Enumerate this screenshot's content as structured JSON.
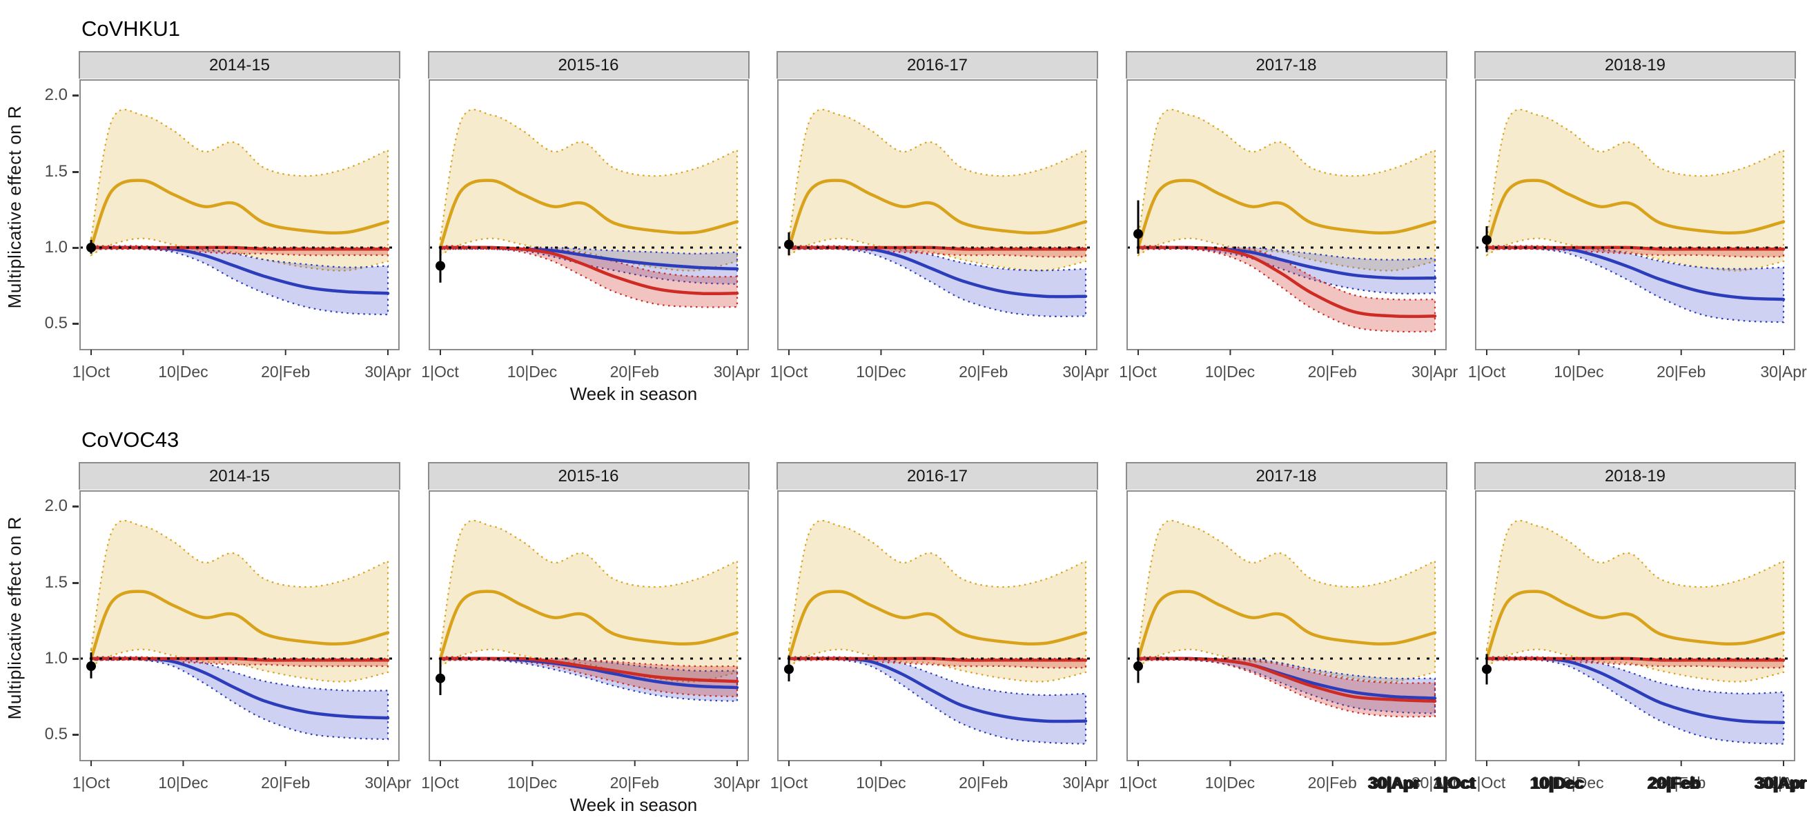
{
  "figure": {
    "y_ticks": [
      0.5,
      1.0,
      1.5,
      2.0
    ],
    "x_tick_labels": [
      "1|Oct",
      "10|Dec",
      "20|Feb",
      "30|Apr"
    ],
    "x_tick_weeks": [
      1,
      10,
      20,
      30
    ],
    "colors": {
      "yellow": "#D9A21B",
      "yellow_fill": "rgba(217,162,27,0.22)",
      "red": "#CD2B23",
      "red_fill": "rgba(205,43,35,0.28)",
      "blue": "#2B3DBB",
      "blue_fill": "rgba(60,72,200,0.25)",
      "reference": "#000000",
      "point": "#000000",
      "strip_bg": "#D9D9D9",
      "panel_border": "#8C8C8C"
    }
  },
  "artifact": {
    "labels": [
      "30|Apr",
      "1|Oct",
      "10|Dec",
      "20|Feb",
      "30|Apr"
    ],
    "offsets": [
      0,
      95,
      235,
      405,
      560
    ]
  },
  "chart_data": [
    {
      "type": "line",
      "title": "CoVHKU1",
      "xlabel": "Week in season",
      "ylabel": "Multiplicative effect on R",
      "ylim": [
        0.33,
        2.1
      ],
      "y_ticks": [
        0.5,
        1.0,
        1.5,
        2.0
      ],
      "x_weeks": [
        1,
        3,
        6,
        9,
        12,
        15,
        18,
        22,
        26,
        30
      ],
      "x_tick_weeks": [
        1,
        10,
        20,
        30
      ],
      "x_tick_labels": [
        "1|Oct",
        "10|Dec",
        "20|Feb",
        "30|Apr"
      ],
      "reference_line": 1.0,
      "legend": "none",
      "yellow": {
        "mean": [
          1.0,
          1.37,
          1.44,
          1.35,
          1.27,
          1.29,
          1.16,
          1.11,
          1.1,
          1.17
        ],
        "lower": [
          0.95,
          1.02,
          1.06,
          1.02,
          0.98,
          0.97,
          0.92,
          0.87,
          0.85,
          0.91
        ],
        "upper": [
          1.06,
          1.83,
          1.87,
          1.77,
          1.63,
          1.69,
          1.52,
          1.47,
          1.52,
          1.64
        ]
      },
      "facets": [
        {
          "season": "2014-15",
          "red": {
            "mean": [
              1,
              1,
              1,
              1,
              1,
              1,
              0.99,
              0.99,
              0.99,
              0.99
            ],
            "lower": [
              0.99,
              0.99,
              0.99,
              0.98,
              0.97,
              0.96,
              0.96,
              0.95,
              0.95,
              0.95
            ],
            "upper": [
              1.01,
              1.01,
              1.01,
              1,
              1,
              1,
              1,
              1,
              1,
              1
            ]
          },
          "blue": {
            "mean": [
              1,
              1,
              1,
              0.99,
              0.95,
              0.88,
              0.81,
              0.74,
              0.71,
              0.7
            ],
            "lower": [
              0.99,
              0.99,
              0.99,
              0.97,
              0.9,
              0.79,
              0.7,
              0.61,
              0.57,
              0.56
            ],
            "upper": [
              1.01,
              1.01,
              1,
              1,
              0.99,
              0.96,
              0.92,
              0.89,
              0.87,
              0.88
            ]
          },
          "point": {
            "x": 1,
            "y": 1.0,
            "lower": 0.96,
            "upper": 1.05
          }
        },
        {
          "season": "2015-16",
          "red": {
            "mean": [
              1,
              1,
              1,
              0.99,
              0.96,
              0.89,
              0.81,
              0.73,
              0.7,
              0.7
            ],
            "lower": [
              0.99,
              0.99,
              0.99,
              0.97,
              0.91,
              0.81,
              0.71,
              0.63,
              0.61,
              0.61
            ],
            "upper": [
              1.01,
              1.01,
              1,
              1,
              0.99,
              0.96,
              0.91,
              0.84,
              0.81,
              0.81
            ]
          },
          "blue": {
            "mean": [
              1,
              1,
              1,
              0.99,
              0.98,
              0.95,
              0.92,
              0.89,
              0.87,
              0.86
            ],
            "lower": [
              0.99,
              0.99,
              0.99,
              0.98,
              0.94,
              0.89,
              0.85,
              0.8,
              0.77,
              0.76
            ],
            "upper": [
              1.01,
              1.01,
              1,
              1,
              1,
              0.99,
              0.98,
              0.97,
              0.96,
              0.97
            ]
          },
          "point": {
            "x": 1,
            "y": 0.88,
            "lower": 0.77,
            "upper": 1.01
          }
        },
        {
          "season": "2016-17",
          "red": {
            "mean": [
              1,
              1,
              1,
              1,
              1,
              1,
              0.99,
              0.99,
              0.99,
              0.99
            ],
            "lower": [
              0.99,
              0.99,
              0.99,
              0.98,
              0.97,
              0.96,
              0.95,
              0.95,
              0.94,
              0.94
            ],
            "upper": [
              1.01,
              1.01,
              1.01,
              1,
              1,
              1,
              1,
              1,
              1,
              1
            ]
          },
          "blue": {
            "mean": [
              1,
              1,
              1,
              0.99,
              0.94,
              0.86,
              0.78,
              0.71,
              0.68,
              0.68
            ],
            "lower": [
              0.99,
              0.99,
              0.99,
              0.96,
              0.88,
              0.77,
              0.66,
              0.58,
              0.55,
              0.55
            ],
            "upper": [
              1.01,
              1.01,
              1,
              1,
              0.99,
              0.95,
              0.9,
              0.86,
              0.85,
              0.86
            ]
          },
          "point": {
            "x": 1,
            "y": 1.02,
            "lower": 0.95,
            "upper": 1.1
          }
        },
        {
          "season": "2017-18",
          "red": {
            "mean": [
              1,
              1,
              1,
              0.99,
              0.94,
              0.83,
              0.7,
              0.58,
              0.55,
              0.55
            ],
            "lower": [
              0.99,
              0.99,
              0.99,
              0.96,
              0.88,
              0.74,
              0.6,
              0.48,
              0.45,
              0.45
            ],
            "upper": [
              1.01,
              1.01,
              1,
              1,
              0.99,
              0.92,
              0.81,
              0.69,
              0.66,
              0.66
            ]
          },
          "blue": {
            "mean": [
              1,
              1,
              1,
              0.99,
              0.97,
              0.92,
              0.87,
              0.82,
              0.8,
              0.8
            ],
            "lower": [
              0.99,
              0.99,
              0.99,
              0.97,
              0.93,
              0.86,
              0.79,
              0.73,
              0.7,
              0.7
            ],
            "upper": [
              1.01,
              1.01,
              1,
              1,
              1,
              0.98,
              0.96,
              0.93,
              0.92,
              0.93
            ]
          },
          "point": {
            "x": 1,
            "y": 1.09,
            "lower": 0.96,
            "upper": 1.31
          }
        },
        {
          "season": "2018-19",
          "red": {
            "mean": [
              1,
              1,
              1,
              1,
              1,
              1,
              0.99,
              0.99,
              0.99,
              0.99
            ],
            "lower": [
              0.99,
              0.99,
              0.99,
              0.98,
              0.97,
              0.96,
              0.95,
              0.95,
              0.94,
              0.94
            ],
            "upper": [
              1.01,
              1.01,
              1.01,
              1,
              1,
              1,
              1,
              1,
              1,
              1
            ]
          },
          "blue": {
            "mean": [
              1,
              1,
              1,
              0.99,
              0.94,
              0.87,
              0.79,
              0.71,
              0.67,
              0.66
            ],
            "lower": [
              0.99,
              0.99,
              0.99,
              0.96,
              0.88,
              0.78,
              0.67,
              0.56,
              0.52,
              0.51
            ],
            "upper": [
              1.01,
              1.01,
              1,
              1,
              0.99,
              0.96,
              0.91,
              0.87,
              0.86,
              0.87
            ]
          },
          "point": {
            "x": 1,
            "y": 1.05,
            "lower": 0.97,
            "upper": 1.14
          }
        }
      ]
    },
    {
      "type": "line",
      "title": "CoVOC43",
      "xlabel": "Week in season",
      "ylabel": "Multiplicative effect on R",
      "ylim": [
        0.33,
        2.1
      ],
      "y_ticks": [
        0.5,
        1.0,
        1.5,
        2.0
      ],
      "x_weeks": [
        1,
        3,
        6,
        9,
        12,
        15,
        18,
        22,
        26,
        30
      ],
      "x_tick_weeks": [
        1,
        10,
        20,
        30
      ],
      "x_tick_labels": [
        "1|Oct",
        "10|Dec",
        "20|Feb",
        "30|Apr"
      ],
      "reference_line": 1.0,
      "legend": "none",
      "yellow": {
        "mean": [
          1.0,
          1.37,
          1.44,
          1.35,
          1.27,
          1.29,
          1.16,
          1.11,
          1.1,
          1.17
        ],
        "lower": [
          0.95,
          1.02,
          1.06,
          1.02,
          0.98,
          0.97,
          0.92,
          0.87,
          0.85,
          0.91
        ],
        "upper": [
          1.06,
          1.83,
          1.87,
          1.77,
          1.63,
          1.69,
          1.52,
          1.47,
          1.52,
          1.64
        ]
      },
      "facets": [
        {
          "season": "2014-15",
          "red": {
            "mean": [
              1,
              1,
              1,
              1,
              1,
              1,
              0.99,
              0.99,
              0.99,
              0.99
            ],
            "lower": [
              0.99,
              0.99,
              0.99,
              0.98,
              0.97,
              0.96,
              0.96,
              0.95,
              0.95,
              0.95
            ],
            "upper": [
              1.01,
              1.01,
              1.01,
              1,
              1,
              1,
              1,
              1,
              1,
              1
            ]
          },
          "blue": {
            "mean": [
              1,
              1,
              1,
              0.98,
              0.91,
              0.81,
              0.72,
              0.65,
              0.62,
              0.61
            ],
            "lower": [
              0.99,
              0.99,
              0.99,
              0.95,
              0.84,
              0.71,
              0.6,
              0.51,
              0.48,
              0.47
            ],
            "upper": [
              1.01,
              1.01,
              1,
              1,
              0.97,
              0.91,
              0.85,
              0.81,
              0.79,
              0.79
            ]
          },
          "point": {
            "x": 1,
            "y": 0.95,
            "lower": 0.87,
            "upper": 1.04
          }
        },
        {
          "season": "2015-16",
          "red": {
            "mean": [
              1,
              1,
              1,
              1,
              0.98,
              0.95,
              0.92,
              0.88,
              0.86,
              0.85
            ],
            "lower": [
              0.99,
              0.99,
              0.99,
              0.98,
              0.95,
              0.9,
              0.85,
              0.79,
              0.76,
              0.75
            ],
            "upper": [
              1.01,
              1.01,
              1,
              1,
              1,
              0.99,
              0.98,
              0.96,
              0.95,
              0.95
            ]
          },
          "blue": {
            "mean": [
              1,
              1,
              1,
              0.99,
              0.97,
              0.94,
              0.9,
              0.85,
              0.82,
              0.81
            ],
            "lower": [
              0.99,
              0.99,
              0.99,
              0.97,
              0.93,
              0.88,
              0.82,
              0.76,
              0.73,
              0.72
            ],
            "upper": [
              1.01,
              1.01,
              1,
              1,
              1,
              0.99,
              0.97,
              0.94,
              0.92,
              0.92
            ]
          },
          "point": {
            "x": 1,
            "y": 0.87,
            "lower": 0.76,
            "upper": 1.0
          }
        },
        {
          "season": "2016-17",
          "red": {
            "mean": [
              1,
              1,
              1,
              1,
              1,
              1,
              0.99,
              0.99,
              0.99,
              0.99
            ],
            "lower": [
              0.99,
              0.99,
              0.99,
              0.98,
              0.97,
              0.96,
              0.95,
              0.95,
              0.94,
              0.94
            ],
            "upper": [
              1.01,
              1.01,
              1.01,
              1,
              1,
              1,
              1,
              1,
              1,
              1
            ]
          },
          "blue": {
            "mean": [
              1,
              1,
              1,
              0.98,
              0.9,
              0.79,
              0.69,
              0.62,
              0.59,
              0.59
            ],
            "lower": [
              0.99,
              0.99,
              0.99,
              0.95,
              0.83,
              0.69,
              0.57,
              0.48,
              0.45,
              0.44
            ],
            "upper": [
              1.01,
              1.01,
              1,
              1,
              0.97,
              0.9,
              0.83,
              0.78,
              0.76,
              0.77
            ]
          },
          "point": {
            "x": 1,
            "y": 0.93,
            "lower": 0.85,
            "upper": 1.02
          }
        },
        {
          "season": "2017-18",
          "red": {
            "mean": [
              1,
              1,
              1,
              0.99,
              0.96,
              0.89,
              0.82,
              0.75,
              0.73,
              0.72
            ],
            "lower": [
              0.99,
              0.99,
              0.99,
              0.97,
              0.91,
              0.82,
              0.73,
              0.65,
              0.62,
              0.62
            ],
            "upper": [
              1.01,
              1.01,
              1,
              1,
              0.99,
              0.96,
              0.91,
              0.86,
              0.84,
              0.84
            ]
          },
          "blue": {
            "mean": [
              1,
              1,
              1,
              0.99,
              0.96,
              0.9,
              0.84,
              0.78,
              0.75,
              0.74
            ],
            "lower": [
              0.99,
              0.99,
              0.99,
              0.97,
              0.92,
              0.84,
              0.76,
              0.68,
              0.65,
              0.64
            ],
            "upper": [
              1.01,
              1.01,
              1,
              1,
              1,
              0.97,
              0.93,
              0.89,
              0.87,
              0.87
            ]
          },
          "point": {
            "x": 1,
            "y": 0.95,
            "lower": 0.84,
            "upper": 1.07
          }
        },
        {
          "season": "2018-19",
          "red": {
            "mean": [
              1,
              1,
              1,
              1,
              1,
              1,
              0.99,
              0.99,
              0.99,
              0.99
            ],
            "lower": [
              0.99,
              0.99,
              0.99,
              0.98,
              0.97,
              0.96,
              0.95,
              0.95,
              0.94,
              0.94
            ],
            "upper": [
              1.01,
              1.01,
              1.01,
              1,
              1,
              1,
              1,
              1,
              1,
              1
            ]
          },
          "blue": {
            "mean": [
              1,
              1,
              1,
              0.98,
              0.91,
              0.81,
              0.71,
              0.63,
              0.59,
              0.58
            ],
            "lower": [
              0.99,
              0.99,
              0.99,
              0.95,
              0.84,
              0.71,
              0.59,
              0.49,
              0.45,
              0.44
            ],
            "upper": [
              1.01,
              1.01,
              1,
              1,
              0.97,
              0.91,
              0.84,
              0.79,
              0.77,
              0.78
            ]
          },
          "point": {
            "x": 1,
            "y": 0.93,
            "lower": 0.83,
            "upper": 1.03
          }
        }
      ]
    }
  ]
}
